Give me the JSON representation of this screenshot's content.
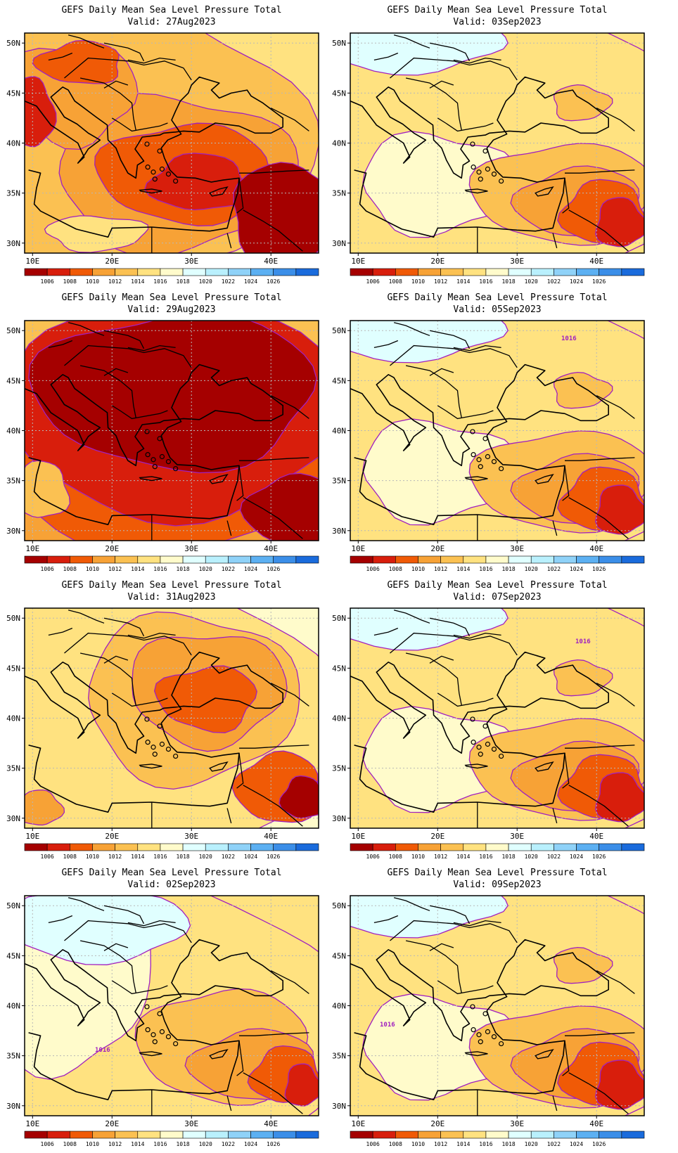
{
  "product_title": "GEFS Daily Mean Sea Level Pressure Total",
  "valid_prefix": "Valid:",
  "panels": [
    {
      "date": "27Aug2023",
      "scenario": "low_southeast"
    },
    {
      "date": "03Sep2023",
      "scenario": "high_north"
    },
    {
      "date": "29Aug2023",
      "scenario": "very_low"
    },
    {
      "date": "05Sep2023",
      "scenario": "high_north"
    },
    {
      "date": "31Aug2023",
      "scenario": "moderate"
    },
    {
      "date": "07Sep2023",
      "scenario": "high_north"
    },
    {
      "date": "02Sep2023",
      "scenario": "high_west"
    },
    {
      "date": "09Sep2023",
      "scenario": "high_north"
    }
  ],
  "lat_labels": [
    "50N",
    "45N",
    "40N",
    "35N",
    "30N"
  ],
  "lon_labels": [
    "10E",
    "20E",
    "30E",
    "40E"
  ],
  "colorbar": {
    "ticks": [
      "1006",
      "1008",
      "1010",
      "1012",
      "1014",
      "1016",
      "1018",
      "1020",
      "1022",
      "1024",
      "1026"
    ],
    "colors": [
      "#a50000",
      "#d81e0c",
      "#f05a06",
      "#f7a236",
      "#fbc152",
      "#ffe280",
      "#fffbcb",
      "#e0ffff",
      "#b9f0fd",
      "#8fd2f8",
      "#5cb0f2",
      "#3b8ee8",
      "#1a6bdc"
    ]
  },
  "contour_labels": [
    {
      "panel": 3,
      "text": "1016"
    },
    {
      "panel": 5,
      "text": "1016"
    },
    {
      "panel": 6,
      "text": "1016"
    },
    {
      "panel": 7,
      "text": "1016"
    }
  ],
  "colors": {
    "contour": "#a020c0",
    "coast": "#000000",
    "grid": "#b8b8b8"
  }
}
